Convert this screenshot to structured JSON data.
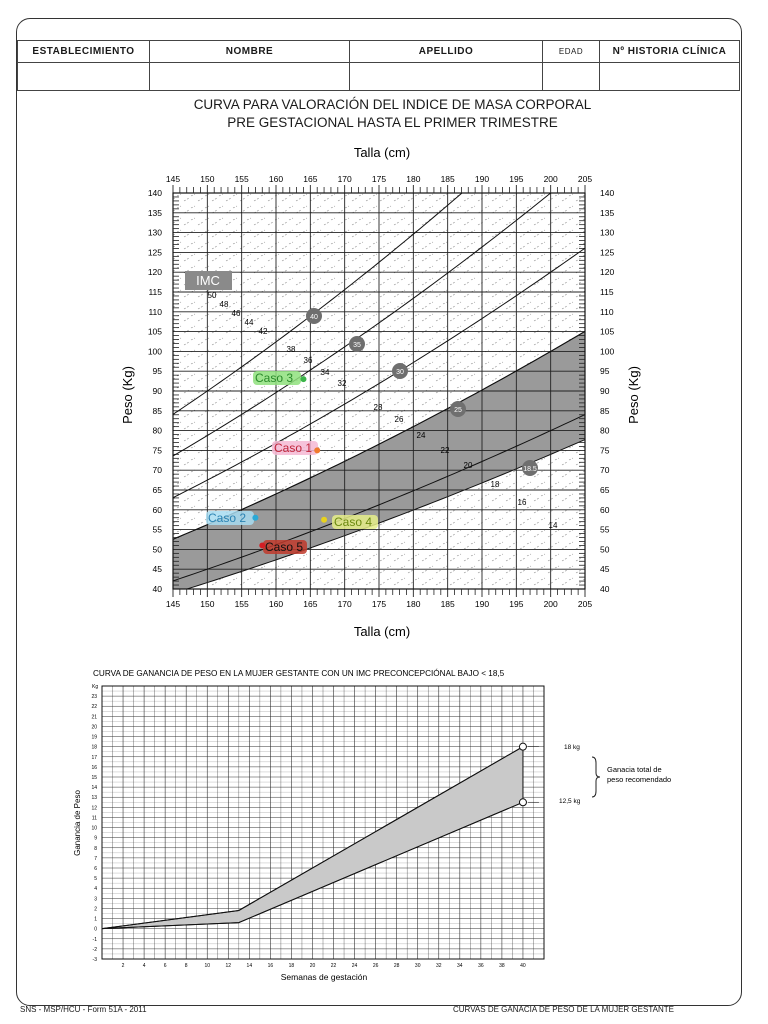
{
  "header": {
    "columns": [
      "ESTABLECIMIENTO",
      "NOMBRE",
      "APELLIDO",
      "EDAD",
      "Nº HISTORIA CLÍNICA"
    ]
  },
  "imc_chart": {
    "title_line1": "CURVA PARA VALORACIÓN DEL INDICE DE MASA CORPORAL",
    "title_line2": "PRE GESTACIONAL HASTA EL PRIMER TRIMESTRE",
    "x_label": "Talla (cm)",
    "y_label": "Peso (Kg)",
    "imc_box": "IMC",
    "x_ticks": [
      145,
      150,
      155,
      160,
      165,
      170,
      175,
      180,
      185,
      190,
      195,
      200,
      205
    ],
    "y_ticks": [
      140,
      135,
      130,
      125,
      120,
      115,
      110,
      105,
      100,
      95,
      90,
      85,
      80,
      75,
      70,
      65,
      60,
      55,
      50,
      45,
      40
    ],
    "colors": {
      "normal_band": "#9a9a9a",
      "circle": "#6f6f6f"
    }
  },
  "gain_chart": {
    "title": "CURVA DE GANANCIA DE PESO EN LA MUJER GESTANTE CON UN  IMC  PRECONCEPCIÓNAL BAJO < 18,5",
    "y_unit": "Kg",
    "y_label": "Ganancia de Peso",
    "x_label": "Semanas de gestación",
    "y_ticks": [
      23,
      22,
      21,
      20,
      19,
      18,
      17,
      16,
      15,
      14,
      13,
      12,
      11,
      10,
      9,
      8,
      7,
      6,
      5,
      4,
      3,
      2,
      1,
      0,
      -1,
      -2,
      -3
    ],
    "x_ticks": [
      2,
      4,
      6,
      8,
      10,
      12,
      14,
      16,
      18,
      20,
      22,
      24,
      26,
      28,
      30,
      32,
      34,
      36,
      38,
      40
    ],
    "label_18": "18 kg",
    "label_125": "12,5 kg",
    "note_line1": "Ganacia total de",
    "note_line2": "peso recomendado"
  },
  "chart_data": [
    {
      "type": "line",
      "title": "CURVA PARA VALORACIÓN DEL INDICE DE MASA CORPORAL PRE GESTACIONAL HASTA EL PRIMER TRIMESTRE",
      "xlabel": "Talla (cm)",
      "ylabel": "Peso (Kg)",
      "xlim": [
        145,
        205
      ],
      "ylim": [
        40,
        140
      ],
      "bmi_lines": [
        20,
        25,
        30,
        35,
        40
      ],
      "bmi_band_normal": [
        18.5,
        25
      ],
      "bmi_labels": [
        50,
        48,
        46,
        44,
        42,
        38,
        36,
        34,
        32,
        28,
        26,
        24,
        22,
        20,
        18,
        16,
        14
      ],
      "bmi_circle_labels": [
        40,
        35,
        30,
        25,
        18.5
      ],
      "cases": [
        {
          "name": "Caso 1",
          "talla": 166,
          "peso": 75,
          "color": "#f07a2e",
          "label_bg": "#f4b8d3"
        },
        {
          "name": "Caso 2",
          "talla": 157,
          "peso": 58,
          "color": "#2aa9d6",
          "label_bg": "#a8dcf1"
        },
        {
          "name": "Caso 3",
          "talla": 164,
          "peso": 93,
          "color": "#3bb44a",
          "label_bg": "#8fe07c"
        },
        {
          "name": "Caso 4",
          "talla": 167,
          "peso": 57.5,
          "color": "#e8d21d",
          "label_bg": "#e6ef8a"
        },
        {
          "name": "Caso 5",
          "talla": 158,
          "peso": 51,
          "color": "#d41d24",
          "label_bg": "#c0392b"
        }
      ]
    },
    {
      "type": "area",
      "title": "CURVA DE GANANCIA DE PESO EN LA MUJER GESTANTE CON UN  IMC  PRECONCEPCIÓNAL BAJO < 18,5",
      "xlabel": "Semanas de gestación",
      "ylabel": "Ganancia de Peso",
      "xlim": [
        0,
        42
      ],
      "ylim": [
        -3,
        24
      ],
      "series": [
        {
          "name": "18 kg",
          "x": [
            0,
            13,
            40
          ],
          "y": [
            0,
            1.8,
            18
          ]
        },
        {
          "name": "12,5 kg",
          "x": [
            0,
            13,
            40
          ],
          "y": [
            0,
            0.6,
            12.5
          ]
        }
      ]
    }
  ],
  "footer": {
    "left": "SNS - MSP/HCU - Form 51A - 2011",
    "right": "CURVAS DE GANACIA DE PESO DE LA MUJER GESTANTE"
  }
}
